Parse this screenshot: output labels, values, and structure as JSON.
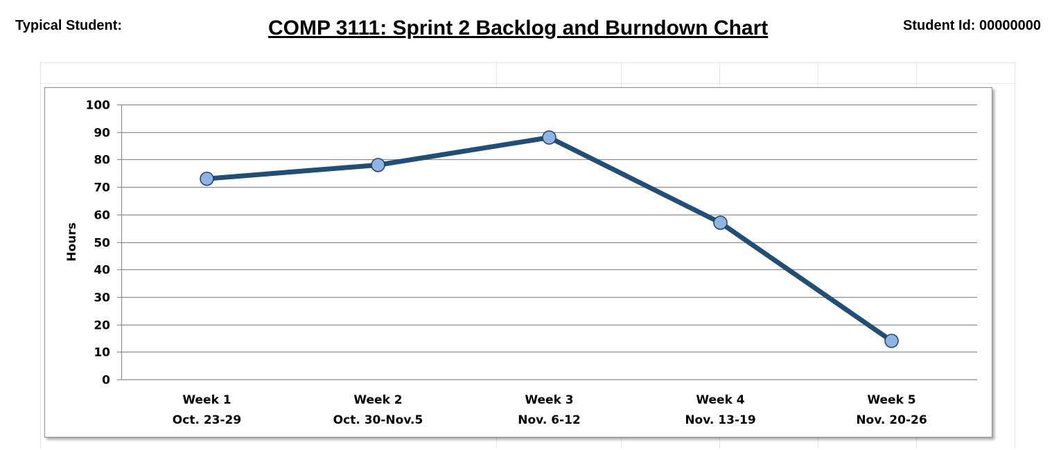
{
  "header": {
    "left_label": "Typical Student:",
    "title": "COMP 3111: Sprint 2 Backlog and Burndown Chart",
    "student_id": "Student Id: 00000000"
  },
  "colors": {
    "line": "#1f4e79",
    "marker_fill": "#8db4e2",
    "marker_stroke": "#1f3f66",
    "gridline": "#8c8c8c"
  },
  "chart_data": {
    "type": "line",
    "title": "",
    "ylabel": "Hours",
    "xlabel": "",
    "ylim": [
      0,
      100
    ],
    "yticks": [
      0,
      10,
      20,
      30,
      40,
      50,
      60,
      70,
      80,
      90,
      100
    ],
    "grid": true,
    "legend": "none",
    "categories": [
      [
        "Week 1",
        "Oct. 23-29"
      ],
      [
        "Week 2",
        "Oct. 30-Nov.5"
      ],
      [
        "Week 3",
        "Nov. 6-12"
      ],
      [
        "Week 4",
        "Nov. 13-19"
      ],
      [
        "Week 5",
        "Nov. 20-26"
      ]
    ],
    "series": [
      {
        "values": [
          73,
          78,
          88,
          57,
          14
        ]
      }
    ]
  }
}
